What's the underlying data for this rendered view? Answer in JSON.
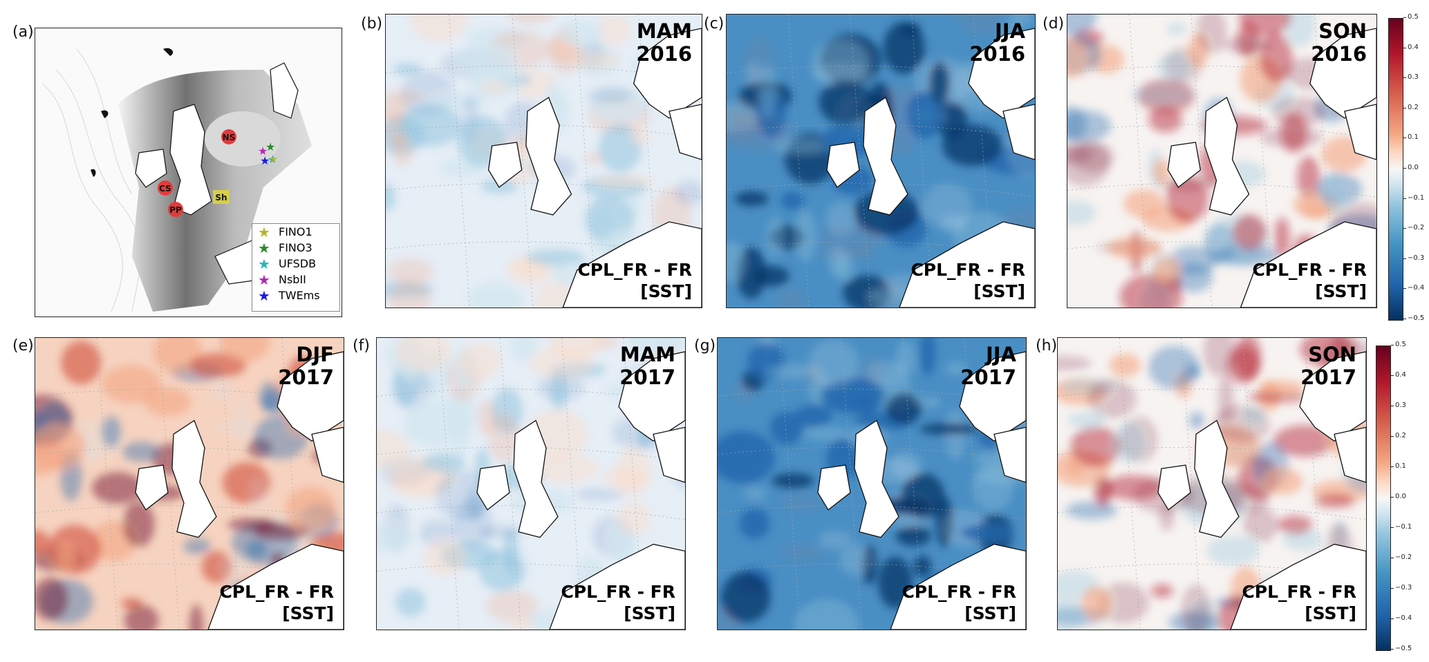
{
  "panels": {
    "a": {
      "letter": "(a)"
    },
    "b": {
      "letter": "(b)",
      "season": "MAM",
      "year": "2016",
      "label1": "CPL_FR - FR",
      "label2": "[SST]"
    },
    "c": {
      "letter": "(c)",
      "season": "JJA",
      "year": "2016",
      "label1": "CPL_FR - FR",
      "label2": "[SST]"
    },
    "d": {
      "letter": "(d)",
      "season": "SON",
      "year": "2016",
      "label1": "CPL_FR - FR",
      "label2": "[SST]"
    },
    "e": {
      "letter": "(e)",
      "season": "DJF",
      "year": "2017",
      "label1": "CPL_FR - FR",
      "label2": "[SST]"
    },
    "f": {
      "letter": "(f)",
      "season": "MAM",
      "year": "2017",
      "label1": "CPL_FR - FR",
      "label2": "[SST]"
    },
    "g": {
      "letter": "(g)",
      "season": "JJA",
      "year": "2017",
      "label1": "CPL_FR - FR",
      "label2": "[SST]"
    },
    "h": {
      "letter": "(h)",
      "season": "SON",
      "year": "2017",
      "label1": "CPL_FR - FR",
      "label2": "[SST]"
    }
  },
  "site_markers": {
    "ns": "NS",
    "cs": "CS",
    "pp": "PP",
    "sh": "Sh"
  },
  "legend": [
    {
      "name": "FINO1",
      "color": "#b5b52a"
    },
    {
      "name": "FINO3",
      "color": "#2a8a2a"
    },
    {
      "name": "UFSDB",
      "color": "#2bb3b3"
    },
    {
      "name": "NsbII",
      "color": "#b02ab0"
    },
    {
      "name": "TWEms",
      "color": "#1a1ae0"
    }
  ],
  "colorbar": {
    "ticks": [
      "0.5",
      "0.4",
      "0.3",
      "0.2",
      "0.1",
      "0.0",
      "−0.1",
      "−0.2",
      "−0.3",
      "−0.4",
      "−0.5"
    ],
    "range": [
      -0.5,
      0.5
    ],
    "colormap": "RdBu_r"
  },
  "colors": {
    "positive": "#b2182b",
    "negative": "#2166ac",
    "land": "#ffffff",
    "coast": "#111111"
  }
}
